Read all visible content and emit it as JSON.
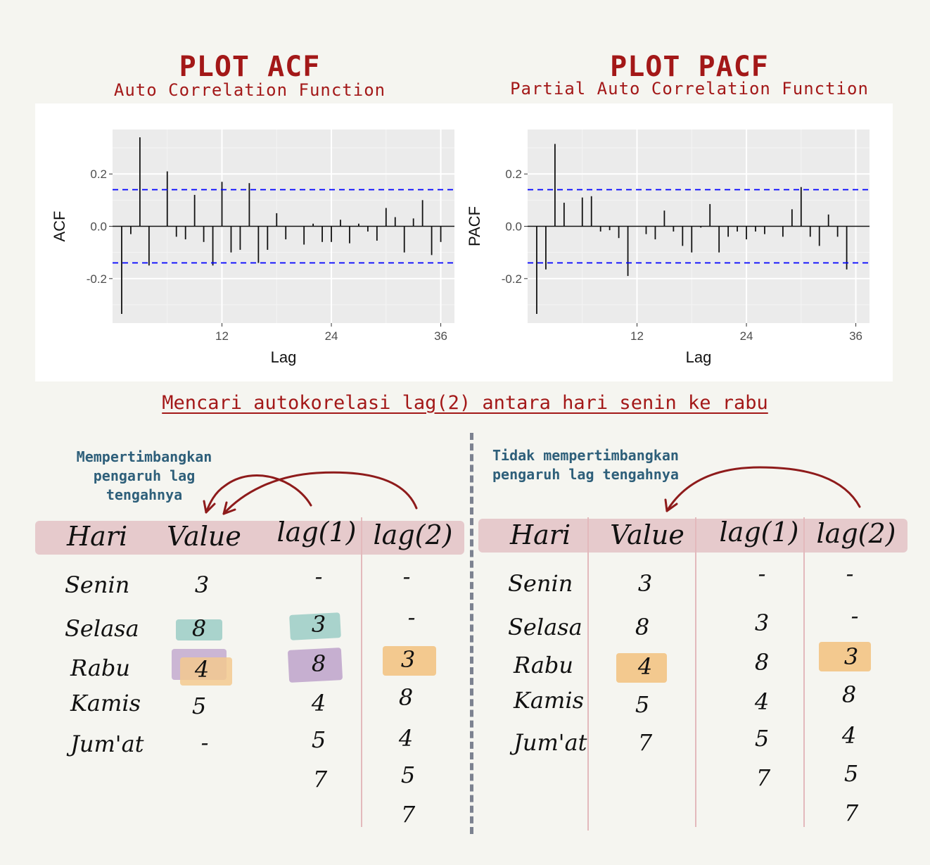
{
  "acf": {
    "title": "PLOT ACF",
    "subtitle": "Auto Correlation Function"
  },
  "pacf": {
    "title": "PLOT PACF",
    "subtitle": "Partial Auto Correlation Function"
  },
  "heading": "Mencari autokorelasi lag(2) antara hari senin ke rabu",
  "note_left": "Mempertimbangkan\npengaruh lag\ntengahnya",
  "note_right": "Tidak mempertimbangkan\npengaruh lag tengahnya",
  "colors": {
    "title_red": "#a31818",
    "note_blue": "#2e5f7a",
    "ci_line": "#0000ff",
    "header_band": "#e4c5c8",
    "highlight_teal": "#a9d3cc",
    "highlight_purple": "#c6afd0",
    "highlight_orange": "#f3c98f"
  },
  "chart_data": [
    {
      "type": "bar",
      "title": "PLOT ACF",
      "subtitle": "Auto Correlation Function",
      "xlabel": "Lag",
      "ylabel": "ACF",
      "x_ticks": [
        12,
        24,
        36
      ],
      "y_ticks": [
        -0.2,
        0.0,
        0.2
      ],
      "y_tick_labels": [
        "-0.2",
        "0.0",
        "0.2"
      ],
      "xlim": [
        0,
        37.5
      ],
      "ylim": [
        -0.37,
        0.37
      ],
      "ci": [
        0.14,
        -0.14
      ],
      "grid": true,
      "x": [
        1,
        2,
        3,
        4,
        5,
        6,
        7,
        8,
        9,
        10,
        11,
        12,
        13,
        14,
        15,
        16,
        17,
        18,
        19,
        20,
        21,
        22,
        23,
        24,
        25,
        26,
        27,
        28,
        29,
        30,
        31,
        32,
        33,
        34,
        35,
        36
      ],
      "values": [
        -0.335,
        -0.03,
        0.34,
        -0.15,
        0.0,
        0.21,
        -0.04,
        -0.05,
        0.12,
        -0.06,
        -0.15,
        0.17,
        -0.1,
        -0.09,
        0.165,
        -0.14,
        -0.09,
        0.05,
        -0.05,
        0.0,
        -0.07,
        0.01,
        -0.06,
        -0.06,
        0.025,
        -0.065,
        0.01,
        -0.02,
        -0.055,
        0.07,
        0.035,
        -0.1,
        0.03,
        0.1,
        -0.11,
        -0.06
      ]
    },
    {
      "type": "bar",
      "title": "PLOT PACF",
      "subtitle": "Partial Auto Correlation Function",
      "xlabel": "Lag",
      "ylabel": "PACF",
      "x_ticks": [
        12,
        24,
        36
      ],
      "y_ticks": [
        -0.2,
        0.0,
        0.2
      ],
      "y_tick_labels": [
        "-0.2",
        "0.0",
        "0.2"
      ],
      "xlim": [
        0,
        37.5
      ],
      "ylim": [
        -0.37,
        0.37
      ],
      "ci": [
        0.14,
        -0.14
      ],
      "grid": true,
      "x": [
        1,
        2,
        3,
        4,
        5,
        6,
        7,
        8,
        9,
        10,
        11,
        12,
        13,
        14,
        15,
        16,
        17,
        18,
        19,
        20,
        21,
        22,
        23,
        24,
        25,
        26,
        27,
        28,
        29,
        30,
        31,
        32,
        33,
        34,
        35,
        36
      ],
      "values": [
        -0.335,
        -0.165,
        0.315,
        0.09,
        0.0,
        0.11,
        0.115,
        -0.02,
        -0.015,
        -0.045,
        -0.19,
        0.0,
        -0.03,
        -0.05,
        0.06,
        -0.02,
        -0.075,
        -0.1,
        -0.005,
        0.085,
        -0.1,
        -0.04,
        -0.02,
        -0.05,
        -0.02,
        -0.03,
        0.0,
        -0.04,
        0.065,
        0.15,
        -0.04,
        -0.075,
        0.045,
        -0.04,
        -0.165,
        0.0
      ]
    }
  ],
  "table_left": {
    "headers": [
      "Hari",
      "Value",
      "lag(1)",
      "lag(2)"
    ],
    "days": [
      "Senin",
      "Selasa",
      "Rabu",
      "Kamis",
      "Jum'at"
    ],
    "value": [
      "3",
      "8",
      "4",
      "5",
      "-"
    ],
    "lag1": [
      "-",
      "3",
      "8",
      "4",
      "5",
      "7"
    ],
    "lag2": [
      "-",
      "-",
      "3",
      "8",
      "4",
      "5",
      "7"
    ]
  },
  "table_right": {
    "headers": [
      "Hari",
      "Value",
      "lag(1)",
      "lag(2)"
    ],
    "days": [
      "Senin",
      "Selasa",
      "Rabu",
      "Kamis",
      "Jum'at"
    ],
    "value": [
      "3",
      "8",
      "4",
      "5",
      "7"
    ],
    "lag1": [
      "-",
      "3",
      "8",
      "4",
      "5",
      "7"
    ],
    "lag2": [
      "-",
      "-",
      "3",
      "8",
      "4",
      "5",
      "7"
    ]
  }
}
